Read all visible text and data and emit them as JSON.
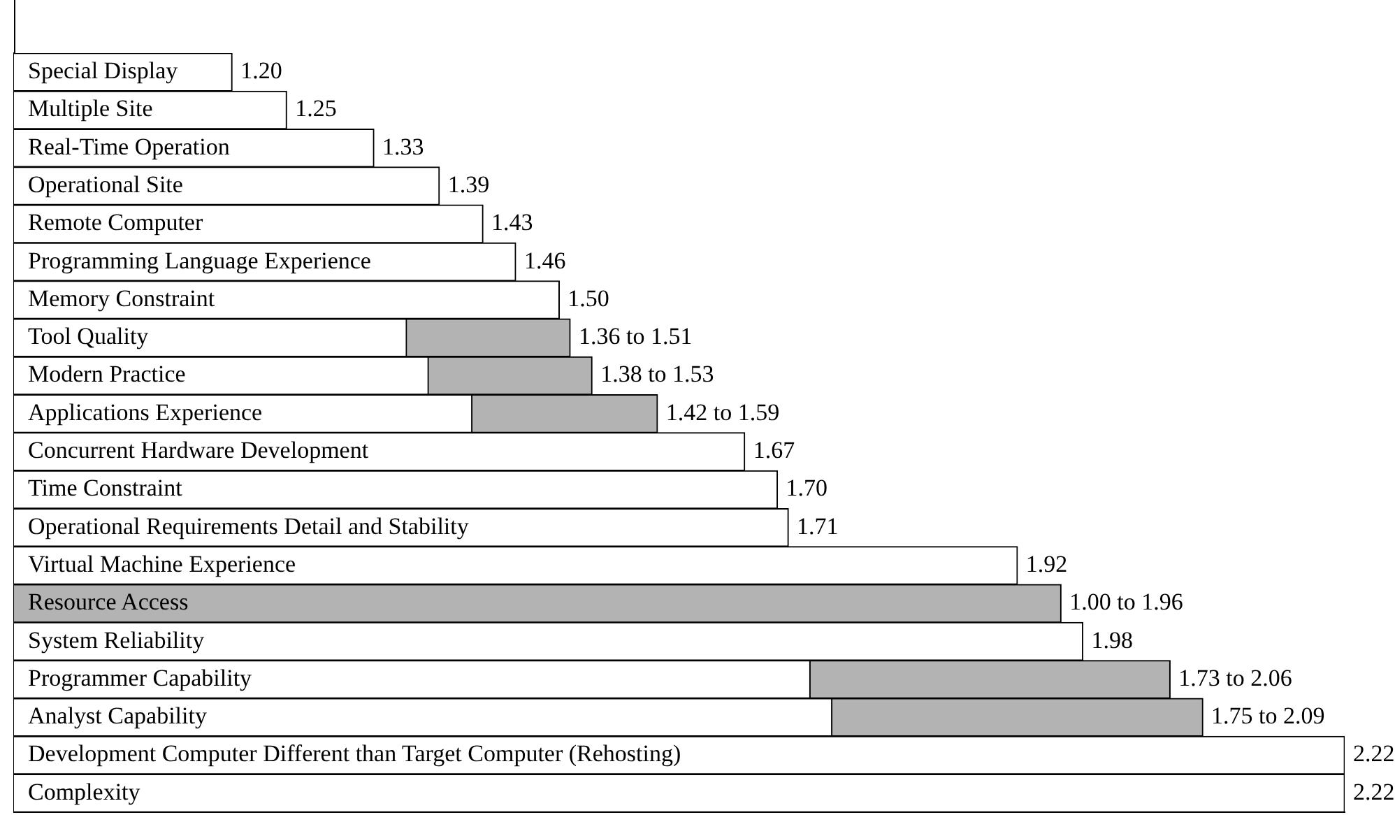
{
  "chart_data": {
    "type": "bar",
    "orientation": "horizontal",
    "categories": [
      "Special Display",
      "Multiple Site",
      "Real-Time Operation",
      "Operational Site",
      "Remote Computer",
      "Programming Language Experience",
      "Memory Constraint",
      "Tool Quality",
      "Modern Practice",
      "Applications Experience",
      "Concurrent Hardware Development",
      "Time Constraint",
      "Operational Requirements Detail and Stability",
      "Virtual Machine Experience",
      "Resource Access",
      "System Reliability",
      "Programmer Capability",
      "Analyst Capability",
      "Development Computer Different than Target Computer (Rehosting)",
      "Complexity"
    ],
    "series": [
      {
        "color": "#ffffff",
        "values": [
          1.2,
          1.25,
          1.33,
          1.39,
          1.43,
          1.46,
          1.5,
          1.36,
          1.38,
          1.42,
          1.67,
          1.7,
          1.71,
          1.92,
          null,
          1.98,
          1.73,
          1.75,
          2.22,
          2.22
        ],
        "value_labels": [
          "1.20",
          "1.25",
          "1.33",
          "1.39",
          "1.43",
          "1.46",
          "1.50",
          null,
          null,
          null,
          "1.67",
          "1.70",
          "1.71",
          "1.92",
          null,
          "1.98",
          null,
          null,
          "2.22",
          "2.22"
        ]
      },
      {
        "color": "#b3b3b3",
        "values": [
          null,
          null,
          null,
          null,
          null,
          null,
          null,
          1.51,
          1.53,
          1.59,
          null,
          null,
          null,
          null,
          1.96,
          null,
          2.06,
          2.09,
          null,
          null
        ],
        "value_labels": [
          null,
          null,
          null,
          null,
          null,
          null,
          null,
          "1.36 to 1.51",
          "1.38 to 1.53",
          "1.42 to 1.59",
          null,
          null,
          null,
          null,
          "1.00 to 1.96",
          null,
          "1.73 to 2.06",
          "1.75 to 2.09",
          null,
          null
        ]
      }
    ],
    "xlim": [
      1,
      2.22
    ],
    "tick_labels": false,
    "grid": false,
    "legend": false
  }
}
